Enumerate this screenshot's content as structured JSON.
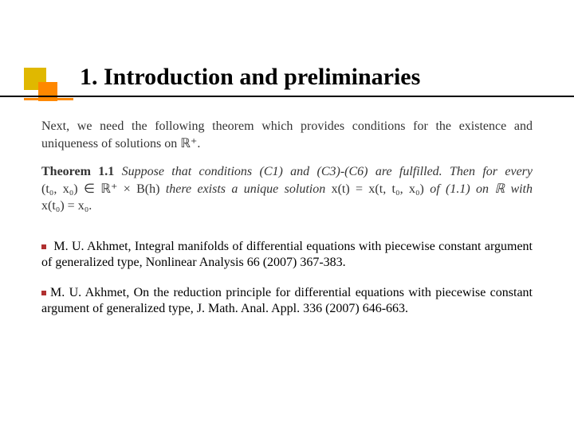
{
  "decoration": {
    "square1_color": "#e0b800",
    "square2_color": "#ff8800",
    "underline_color": "#000000",
    "underline_accent_color": "#ff8800"
  },
  "title": "1. Introduction and preliminaries",
  "paragraph1": {
    "text": "Next, we need the following theorem which provides conditions for the existence and uniqueness of solutions on ℝ⁺."
  },
  "theorem": {
    "label": "Theorem 1.1",
    "body_before_math1": " Suppose that conditions (C1) and (C3)-(C6) are fulfilled. Then for every ",
    "math1": "(t₀, x₀) ∈ ℝ⁺ × B(h)",
    "body_mid": " there exists a unique solution ",
    "math2": "x(t) = x(t, t₀, x₀)",
    "body_after": " of (1.1) on ℝ  with ",
    "math3": "x(t₀) = x₀",
    "period": "."
  },
  "references": [
    {
      "text": " M. U. Akhmet, Integral manifolds of differential equations with piecewise constant argument of generalized type, Nonlinear Analysis 66 (2007) 367-383."
    },
    {
      "text": "M. U. Akhmet, On the reduction principle for  differential equations with piecewise constant argument of generalized type,  J. Math. Anal. Appl. 336 (2007) 646-663."
    }
  ],
  "bullet_color": "#b03030",
  "fonts": {
    "title_fontsize": 30,
    "body_fontsize": 16
  }
}
